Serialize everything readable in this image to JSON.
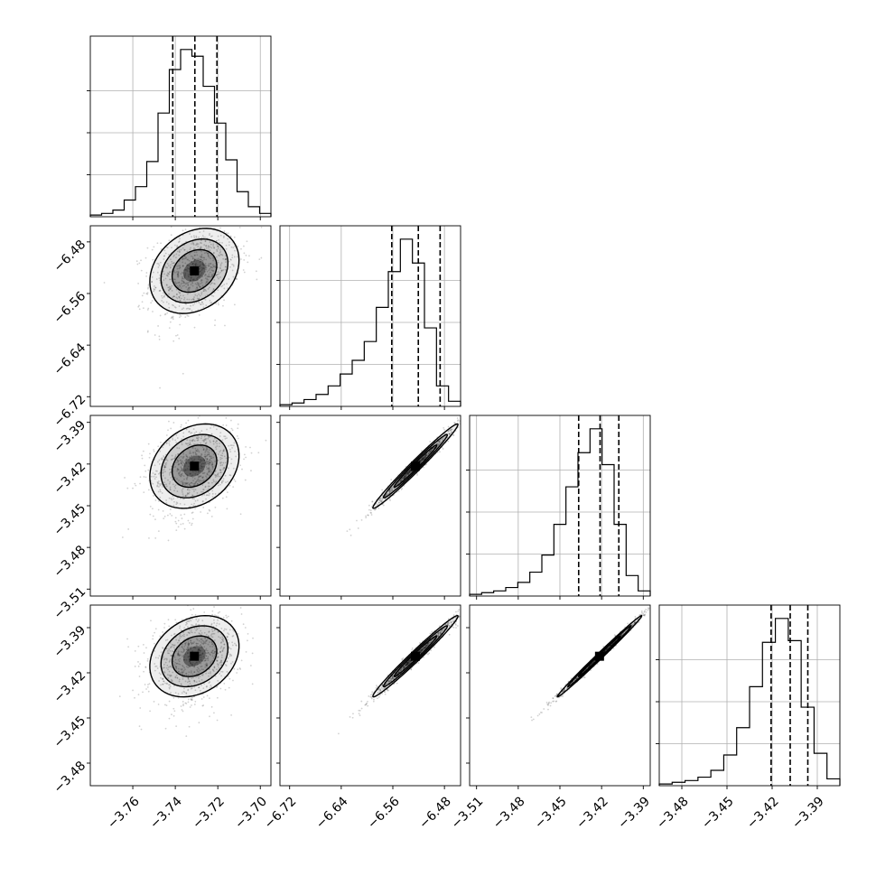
{
  "chart_data": {
    "type": "scatter",
    "title": "",
    "params": [
      {
        "index": 0,
        "range": [
          -3.78,
          -3.695
        ],
        "ticks": [
          -3.76,
          -3.74,
          -3.72,
          -3.7
        ]
      },
      {
        "index": 1,
        "range": [
          -6.735,
          -6.455
        ],
        "ticks": [
          -6.72,
          -6.64,
          -6.56,
          -6.48
        ]
      },
      {
        "index": 2,
        "range": [
          -3.515,
          -3.385
        ],
        "ticks": [
          -3.51,
          -3.48,
          -3.45,
          -3.42,
          -3.39
        ]
      },
      {
        "index": 3,
        "range": [
          -3.495,
          -3.375
        ],
        "ticks": [
          -3.48,
          -3.45,
          -3.42,
          -3.39
        ]
      }
    ],
    "quantiles": [
      [
        -3.7412,
        -3.7308,
        -3.7204
      ],
      [
        -6.5617,
        -6.5205,
        -6.4867
      ],
      [
        -3.4365,
        -3.4211,
        -3.4076
      ],
      [
        -3.4207,
        -3.408,
        -3.3963
      ]
    ],
    "histograms": [
      {
        "param": 0,
        "bin_edges_range": [
          -3.78,
          -3.695
        ],
        "counts": [
          1,
          2,
          4,
          10,
          18,
          33,
          62,
          88,
          100,
          96,
          78,
          56,
          34,
          15,
          6,
          2
        ]
      },
      {
        "param": 1,
        "bin_edges_range": [
          -6.735,
          -6.455
        ],
        "counts": [
          1,
          2,
          4,
          7,
          12,
          19,
          27,
          38,
          58,
          79,
          98,
          84,
          46,
          12,
          3
        ]
      },
      {
        "param": 2,
        "bin_edges_range": [
          -3.515,
          -3.385
        ],
        "counts": [
          1,
          2,
          3,
          5,
          8,
          14,
          24,
          42,
          64,
          84,
          98,
          77,
          42,
          12,
          3
        ]
      },
      {
        "param": 3,
        "bin_edges_range": [
          -3.495,
          -3.375
        ],
        "counts": [
          1,
          2,
          3,
          5,
          9,
          18,
          34,
          58,
          84,
          98,
          85,
          46,
          19,
          4
        ]
      }
    ],
    "pairs": [
      {
        "x": 0,
        "y": 1,
        "center": [
          -3.731,
          -6.525
        ],
        "sigma": [
          0.0105,
          0.033
        ],
        "rho": 0.25
      },
      {
        "x": 0,
        "y": 2,
        "center": [
          -3.731,
          -3.4215
        ],
        "sigma": [
          0.0105,
          0.0152
        ],
        "rho": 0.25
      },
      {
        "x": 1,
        "y": 2,
        "center": [
          -6.525,
          -3.4215
        ],
        "sigma": [
          0.033,
          0.0152
        ],
        "rho": 0.985
      },
      {
        "x": 0,
        "y": 3,
        "center": [
          -3.731,
          -3.409
        ],
        "sigma": [
          0.0105,
          0.0135
        ],
        "rho": 0.25
      },
      {
        "x": 1,
        "y": 3,
        "center": [
          -6.525,
          -3.409
        ],
        "sigma": [
          0.033,
          0.0135
        ],
        "rho": 0.985
      },
      {
        "x": 2,
        "y": 3,
        "center": [
          -3.4215,
          -3.409
        ],
        "sigma": [
          0.0152,
          0.0135
        ],
        "rho": 0.995
      }
    ],
    "grid": true,
    "colors": {
      "points": "#000000",
      "lines": "#000000",
      "grid": "#b0b0b0"
    }
  }
}
